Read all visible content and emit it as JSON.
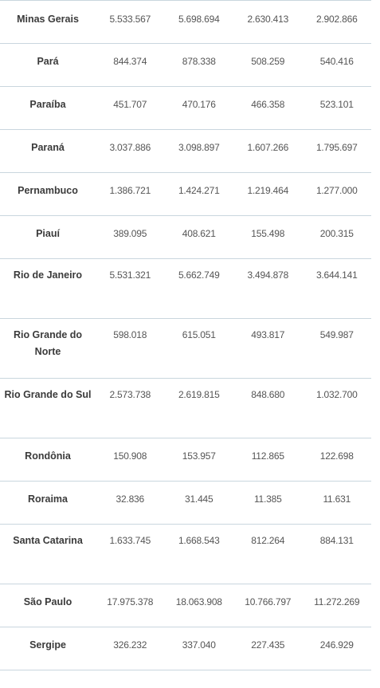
{
  "rows": [
    {
      "state": "Minas Gerais",
      "v1": "5.533.567",
      "v2": "5.698.694",
      "v3": "2.630.413",
      "v4": "2.902.866"
    },
    {
      "state": "Pará",
      "v1": "844.374",
      "v2": "878.338",
      "v3": "508.259",
      "v4": "540.416"
    },
    {
      "state": "Paraíba",
      "v1": "451.707",
      "v2": "470.176",
      "v3": "466.358",
      "v4": "523.101"
    },
    {
      "state": "Paraná",
      "v1": "3.037.886",
      "v2": "3.098.897",
      "v3": "1.607.266",
      "v4": "1.795.697"
    },
    {
      "state": "Pernambuco",
      "v1": "1.386.721",
      "v2": "1.424.271",
      "v3": "1.219.464",
      "v4": "1.277.000"
    },
    {
      "state": "Piauí",
      "v1": "389.095",
      "v2": "408.621",
      "v3": "155.498",
      "v4": "200.315"
    },
    {
      "state": "Rio de Janeiro",
      "v1": "5.531.321",
      "v2": "5.662.749",
      "v3": "3.494.878",
      "v4": "3.644.141"
    },
    {
      "state": "Rio Grande do Norte",
      "v1": "598.018",
      "v2": "615.051",
      "v3": "493.817",
      "v4": "549.987"
    },
    {
      "state": "Rio Grande do Sul",
      "v1": "2.573.738",
      "v2": "2.619.815",
      "v3": "848.680",
      "v4": "1.032.700"
    },
    {
      "state": "Rondônia",
      "v1": "150.908",
      "v2": "153.957",
      "v3": "112.865",
      "v4": "122.698"
    },
    {
      "state": "Roraima",
      "v1": "32.836",
      "v2": "31.445",
      "v3": "11.385",
      "v4": "11.631"
    },
    {
      "state": "Santa Catarina",
      "v1": "1.633.745",
      "v2": "1.668.543",
      "v3": "812.264",
      "v4": "884.131"
    },
    {
      "state": "São Paulo",
      "v1": "17.975.378",
      "v2": "18.063.908",
      "v3": "10.766.797",
      "v4": "11.272.269"
    },
    {
      "state": "Sergipe",
      "v1": "326.232",
      "v2": "337.040",
      "v3": "227.435",
      "v4": "246.929"
    }
  ]
}
